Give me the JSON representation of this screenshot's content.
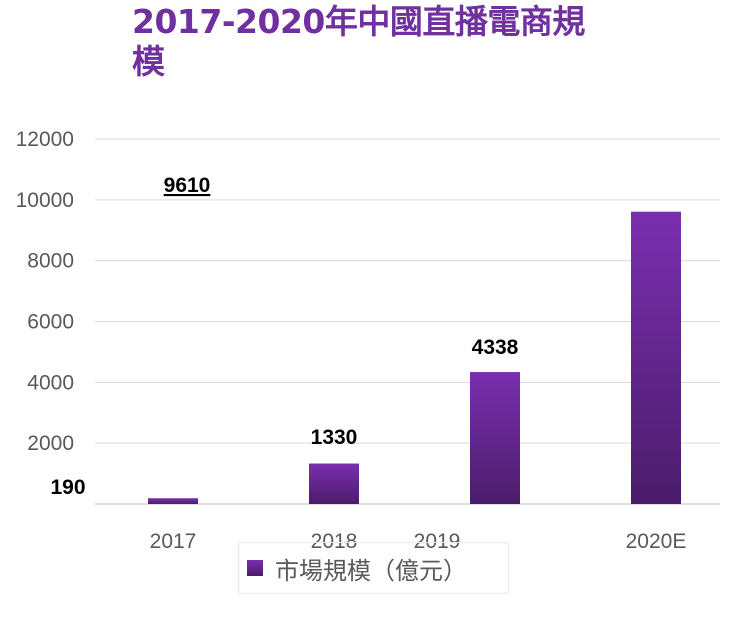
{
  "chart_data": {
    "type": "bar",
    "title": "2017-2020年中國直播電商規模",
    "categories": [
      "2017",
      "2018",
      "2019",
      "2020E"
    ],
    "series": [
      {
        "name": "市場規模（億元）",
        "values": [
          190,
          1330,
          4338,
          9610
        ]
      }
    ],
    "data_labels": [
      "190",
      "1330",
      "4338",
      "9610"
    ],
    "ylim": [
      0,
      12000
    ],
    "yticks": [
      "2000",
      "4000",
      "6000",
      "8000",
      "10000",
      "12000"
    ],
    "grid": true,
    "legend": "bottom",
    "colors": {
      "bar_top": "#7b2fb0",
      "bar_bottom": "#4a1c6a",
      "title": "#7030a0"
    }
  }
}
